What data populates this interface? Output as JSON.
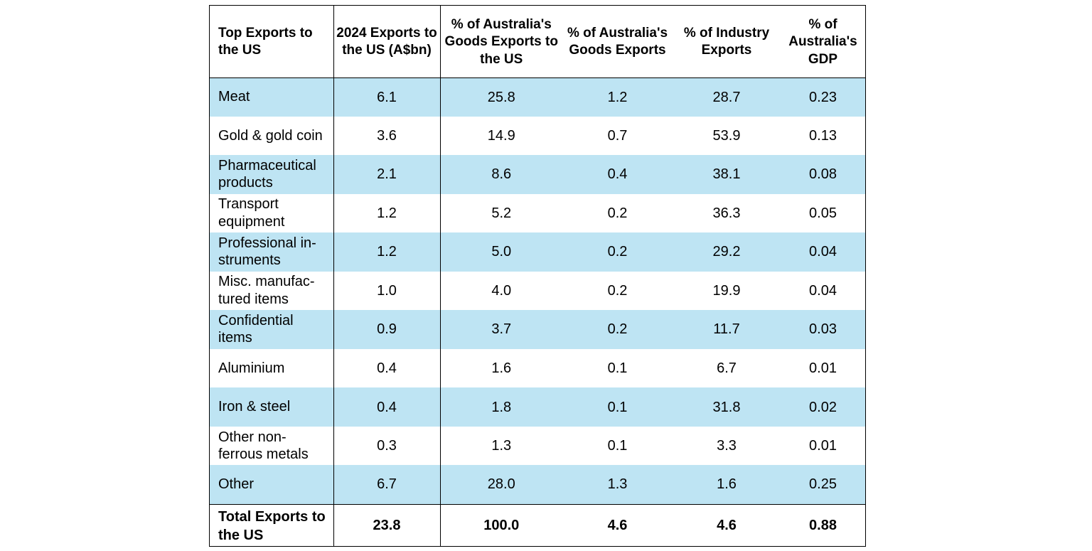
{
  "table": {
    "headers": [
      "Top Exports to the US",
      "2024 Exports to the US (A$bn)",
      "% of Australia's Goods Exports to the US",
      "% of Australia's Goods Exports",
      "% of Industry Exports",
      "% of Australia's GDP"
    ],
    "row_shading_color": "#bee4f3",
    "rows": [
      [
        "Meat",
        "6.1",
        "25.8",
        "1.2",
        "28.7",
        "0.23"
      ],
      [
        "Gold & gold coin",
        "3.6",
        "14.9",
        "0.7",
        "53.9",
        "0.13"
      ],
      [
        "Pharmaceutical products",
        "2.1",
        "8.6",
        "0.4",
        "38.1",
        "0.08"
      ],
      [
        "Transport equipment",
        "1.2",
        "5.2",
        "0.2",
        "36.3",
        "0.05"
      ],
      [
        "Professional in-struments",
        "1.2",
        "5.0",
        "0.2",
        "29.2",
        "0.04"
      ],
      [
        "Misc. manufac-tured items",
        "1.0",
        "4.0",
        "0.2",
        "19.9",
        "0.04"
      ],
      [
        "Confidential items",
        "0.9",
        "3.7",
        "0.2",
        "11.7",
        "0.03"
      ],
      [
        "Aluminium",
        "0.4",
        "1.6",
        "0.1",
        "6.7",
        "0.01"
      ],
      [
        "Iron & steel",
        "0.4",
        "1.8",
        "0.1",
        "31.8",
        "0.02"
      ],
      [
        "Other non-ferrous metals",
        "0.3",
        "1.3",
        "0.1",
        "3.3",
        "0.01"
      ],
      [
        "Other",
        "6.7",
        "28.0",
        "1.3",
        "1.6",
        "0.25"
      ]
    ],
    "total": [
      "Total Exports to the US",
      "23.8",
      "100.0",
      "4.6",
      "4.6",
      "0.88"
    ]
  }
}
